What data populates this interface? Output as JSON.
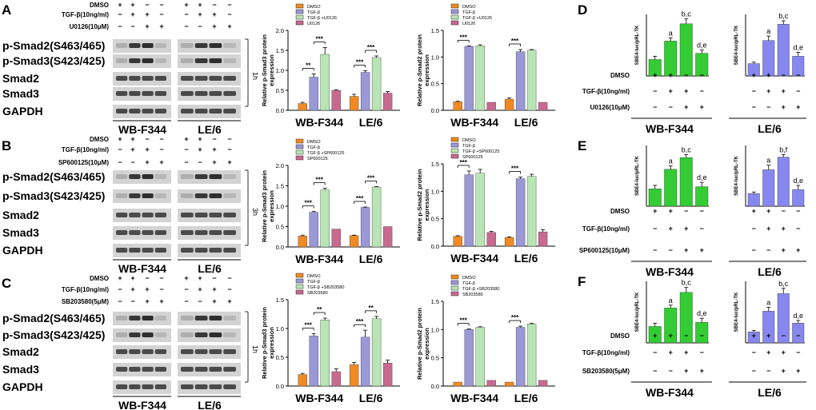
{
  "colors": {
    "dmso": "#f08a24",
    "tgf": "#9b98d6",
    "tgf_inhib": "#b9e4b5",
    "inhib": "#c86a90",
    "green_bar": "#33cc33",
    "purple_bar": "#8787f0",
    "blot_bg": "#d3d3d3",
    "blot_band": "#1c1c1c"
  },
  "panels": [
    {
      "letter": "A",
      "treatments": [
        {
          "label": "DMSO",
          "marks": [
            "+",
            "+",
            "−",
            "−",
            "+",
            "+",
            "−",
            "−"
          ]
        },
        {
          "label": "TGF-β(10ng/ml)",
          "marks": [
            "−",
            "+",
            "+",
            "−",
            "−",
            "+",
            "+",
            "−"
          ]
        },
        {
          "label": "U0126(10μM)",
          "marks": [
            "−",
            "−",
            "+",
            "+",
            "−",
            "−",
            "+",
            "+"
          ]
        }
      ],
      "blot_rows": [
        "p-Smad2(S463/465)",
        "p-Smad3(S423/425)",
        "Smad2",
        "Smad3",
        "GAPDH"
      ],
      "time_label": "1h",
      "cell_lines": [
        "WB-F344",
        "LE/6"
      ]
    },
    {
      "letter": "B",
      "treatments": [
        {
          "label": "DMSO",
          "marks": [
            "+",
            "+",
            "−",
            "−",
            "+",
            "+",
            "−",
            "−"
          ]
        },
        {
          "label": "TGF-β(10ng/ml)",
          "marks": [
            "−",
            "+",
            "+",
            "−",
            "−",
            "+",
            "+",
            "−"
          ]
        },
        {
          "label": "SP600125(10μM)",
          "marks": [
            "−",
            "−",
            "+",
            "+",
            "−",
            "−",
            "+",
            "+"
          ]
        }
      ],
      "blot_rows": [
        "p-Smad2(S463/465)",
        "p-Smad3(S423/425)",
        "Smad2",
        "Smad3",
        "GAPDH"
      ],
      "time_label": "3h",
      "cell_lines": [
        "WB-F344",
        "LE/6"
      ]
    },
    {
      "letter": "C",
      "treatments": [
        {
          "label": "DMSO",
          "marks": [
            "+",
            "+",
            "−",
            "−",
            "+",
            "+",
            "−",
            "−"
          ]
        },
        {
          "label": "TGF-β(10ng/ml)",
          "marks": [
            "−",
            "+",
            "+",
            "−",
            "−",
            "+",
            "+",
            "−"
          ]
        },
        {
          "label": "SB203580(5μM)",
          "marks": [
            "−",
            "−",
            "+",
            "+",
            "−",
            "−",
            "+",
            "+"
          ]
        }
      ],
      "blot_rows": [
        "p-Smad2(S463/465)",
        "p-Smad3(S423/425)",
        "Smad2",
        "Smad3",
        "GAPDH"
      ],
      "time_label": "1h",
      "cell_lines": [
        "WB-F344",
        "LE/6"
      ]
    }
  ],
  "reporter_panels": [
    {
      "letter": "D",
      "ylabel": "SBE4-luc/pRL-TK",
      "treatments": [
        {
          "label": "DMSO",
          "marks": [
            "+",
            "+",
            "−",
            "−"
          ]
        },
        {
          "label": "TGF-β(10ng/ml)",
          "marks": [
            "−",
            "+",
            "+",
            "−"
          ]
        },
        {
          "label": "U0126(10μM)",
          "marks": [
            "−",
            "−",
            "+",
            "+"
          ]
        }
      ],
      "cell_lines": [
        "WB-F344",
        "LE/6"
      ]
    },
    {
      "letter": "E",
      "ylabel": "SBE4-luc/pRL-TK",
      "treatments": [
        {
          "label": "DMSO",
          "marks": [
            "+",
            "+",
            "−",
            "−"
          ]
        },
        {
          "label": "TGF-β(10ng/ml)",
          "marks": [
            "−",
            "+",
            "+",
            "−"
          ]
        },
        {
          "label": "SP600125(10μM)",
          "marks": [
            "−",
            "−",
            "+",
            "+"
          ]
        }
      ],
      "cell_lines": [
        "WB-F344",
        "LE/6"
      ]
    },
    {
      "letter": "F",
      "ylabel": "SBE4-luc/pRL-TK",
      "treatments": [
        {
          "label": "DMSO",
          "marks": [
            "+",
            "+",
            "−",
            "−"
          ]
        },
        {
          "label": "TGF-β(10ng/ml)",
          "marks": [
            "−",
            "+",
            "+",
            "−"
          ]
        },
        {
          "label": "SB203580(5μM)",
          "marks": [
            "−",
            "−",
            "+",
            "+"
          ]
        }
      ],
      "cell_lines": [
        "WB-F344",
        "LE/6"
      ]
    }
  ],
  "chart_data": [
    {
      "id": "A-smad3",
      "type": "bar",
      "ylabel": "Relative p-Smad3 protein expression",
      "ylim": [
        0,
        2.0
      ],
      "yticks": [
        0.0,
        0.5,
        1.0,
        1.5,
        2.0
      ],
      "categories": [
        "WB-F344",
        "LE/6"
      ],
      "legend": [
        "DMSO",
        "TGF-β",
        "TGF-β +U0126",
        "U0126"
      ],
      "series": [
        {
          "name": "DMSO",
          "values": [
            0.17,
            0.35
          ],
          "errors": [
            0.03,
            0.05
          ]
        },
        {
          "name": "TGF-β",
          "values": [
            0.83,
            0.95
          ],
          "errors": [
            0.08,
            0.04
          ]
        },
        {
          "name": "TGF-β +U0126",
          "values": [
            1.4,
            1.32
          ],
          "errors": [
            0.17,
            0.04
          ]
        },
        {
          "name": "U0126",
          "values": [
            0.5,
            0.43
          ],
          "errors": [
            0.01,
            0.04
          ]
        }
      ],
      "annotations": [
        {
          "group": 0,
          "from": 0,
          "to": 1,
          "text": "**"
        },
        {
          "group": 0,
          "from": 1,
          "to": 2,
          "text": "***"
        },
        {
          "group": 1,
          "from": 0,
          "to": 1,
          "text": "***"
        },
        {
          "group": 1,
          "from": 1,
          "to": 2,
          "text": "***"
        }
      ]
    },
    {
      "id": "A-smad2",
      "type": "bar",
      "ylabel": "Relative p-Smad2 protein expression",
      "ylim": [
        0,
        1.5
      ],
      "yticks": [
        0.0,
        0.5,
        1.0,
        1.5
      ],
      "categories": [
        "WB-F344",
        "LE/6"
      ],
      "legend": [
        "DMSO",
        "TGF-β",
        "TGF-β +U0126",
        "U0126"
      ],
      "series": [
        {
          "name": "DMSO",
          "values": [
            0.16,
            0.21
          ],
          "errors": [
            0.01,
            0.02
          ]
        },
        {
          "name": "TGF-β",
          "values": [
            1.2,
            1.1
          ],
          "errors": [
            0.01,
            0.04
          ]
        },
        {
          "name": "TGF-β +U0126",
          "values": [
            1.21,
            1.13
          ],
          "errors": [
            0.02,
            0.01
          ]
        },
        {
          "name": "U0126",
          "values": [
            0.15,
            0.15
          ],
          "errors": [
            0.0,
            0.0
          ]
        }
      ],
      "annotations": [
        {
          "group": 0,
          "from": 0,
          "to": 1,
          "text": "***"
        },
        {
          "group": 1,
          "from": 0,
          "to": 1,
          "text": "***"
        }
      ]
    },
    {
      "id": "B-smad3",
      "type": "bar",
      "ylabel": "Relative p-Smad3 protein expression",
      "ylim": [
        0,
        2.0
      ],
      "yticks": [
        0.0,
        0.5,
        1.0,
        1.5,
        2.0
      ],
      "categories": [
        "WB-F344",
        "LE/6"
      ],
      "legend": [
        "DMSO",
        "TGF-β",
        "TGF-β +SP600125",
        "SP600125"
      ],
      "series": [
        {
          "name": "DMSO",
          "values": [
            0.27,
            0.28
          ],
          "errors": [
            0.02,
            0.01
          ]
        },
        {
          "name": "TGF-β",
          "values": [
            0.85,
            0.97
          ],
          "errors": [
            0.02,
            0.01
          ]
        },
        {
          "name": "TGF-β +SP600125",
          "values": [
            1.4,
            1.47
          ],
          "errors": [
            0.04,
            0.01
          ]
        },
        {
          "name": "SP600125",
          "values": [
            0.44,
            0.5
          ],
          "errors": [
            0.0,
            0.0
          ]
        }
      ],
      "annotations": [
        {
          "group": 0,
          "from": 0,
          "to": 1,
          "text": "***"
        },
        {
          "group": 0,
          "from": 1,
          "to": 2,
          "text": "***"
        },
        {
          "group": 1,
          "from": 0,
          "to": 1,
          "text": "***"
        },
        {
          "group": 1,
          "from": 1,
          "to": 2,
          "text": "***"
        }
      ]
    },
    {
      "id": "B-smad2",
      "type": "bar",
      "ylabel": "Relative p-Smad2 protein expression",
      "ylim": [
        0,
        1.5
      ],
      "yticks": [
        0.0,
        0.5,
        1.0,
        1.5
      ],
      "categories": [
        "WB-F344",
        "LE/6"
      ],
      "legend": [
        "DMSO",
        "TGF-β",
        "TGF-β +SP600125",
        "SP600125"
      ],
      "series": [
        {
          "name": "DMSO",
          "values": [
            0.18,
            0.16
          ],
          "errors": [
            0.01,
            0.01
          ]
        },
        {
          "name": "TGF-β",
          "values": [
            1.3,
            1.23
          ],
          "errors": [
            0.07,
            0.03
          ]
        },
        {
          "name": "TGF-β +SP600125",
          "values": [
            1.33,
            1.27
          ],
          "errors": [
            0.07,
            0.04
          ]
        },
        {
          "name": "SP600125",
          "values": [
            0.25,
            0.26
          ],
          "errors": [
            0.02,
            0.04
          ]
        }
      ],
      "annotations": [
        {
          "group": 0,
          "from": 0,
          "to": 1,
          "text": "***"
        },
        {
          "group": 1,
          "from": 0,
          "to": 1,
          "text": "***"
        }
      ]
    },
    {
      "id": "C-smad3",
      "type": "bar",
      "ylabel": "Relative p-Smad3 protein expression",
      "ylim": [
        0,
        1.5
      ],
      "yticks": [
        0.0,
        0.5,
        1.0,
        1.5
      ],
      "categories": [
        "WB-F344",
        "LE/6"
      ],
      "legend": [
        "DMSO",
        "TGF-β",
        "TGF-β +SB203580",
        "SB203580"
      ],
      "series": [
        {
          "name": "DMSO",
          "values": [
            0.2,
            0.37
          ],
          "errors": [
            0.02,
            0.04
          ]
        },
        {
          "name": "TGF-β",
          "values": [
            0.87,
            0.85
          ],
          "errors": [
            0.04,
            0.12
          ]
        },
        {
          "name": "TGF-β +SB203580",
          "values": [
            1.15,
            1.17
          ],
          "errors": [
            0.03,
            0.04
          ]
        },
        {
          "name": "SB203580",
          "values": [
            0.25,
            0.4
          ],
          "errors": [
            0.05,
            0.05
          ]
        }
      ],
      "annotations": [
        {
          "group": 0,
          "from": 0,
          "to": 1,
          "text": "***"
        },
        {
          "group": 0,
          "from": 1,
          "to": 2,
          "text": "**"
        },
        {
          "group": 1,
          "from": 0,
          "to": 1,
          "text": "***"
        },
        {
          "group": 1,
          "from": 1,
          "to": 2,
          "text": "**"
        }
      ]
    },
    {
      "id": "C-smad2",
      "type": "bar",
      "ylabel": "Relative p-Smad2 protein expression",
      "ylim": [
        0,
        1.5
      ],
      "yticks": [
        0.0,
        0.5,
        1.0,
        1.5
      ],
      "categories": [
        "WB-F344",
        "LE/6"
      ],
      "legend": [
        "DMSO",
        "TGF-β",
        "TGF-β +SB203580",
        "SB203580"
      ],
      "series": [
        {
          "name": "DMSO",
          "values": [
            0.07,
            0.07
          ],
          "errors": [
            0.0,
            0.0
          ]
        },
        {
          "name": "TGF-β",
          "values": [
            1.0,
            1.04
          ],
          "errors": [
            0.01,
            0.02
          ]
        },
        {
          "name": "TGF-β +SB203580",
          "values": [
            1.04,
            1.1
          ],
          "errors": [
            0.01,
            0.01
          ]
        },
        {
          "name": "SB203580",
          "values": [
            0.1,
            0.1
          ],
          "errors": [
            0.0,
            0.0
          ]
        }
      ],
      "annotations": [
        {
          "group": 0,
          "from": 0,
          "to": 1,
          "text": "***"
        },
        {
          "group": 1,
          "from": 0,
          "to": 1,
          "text": "***"
        }
      ]
    },
    {
      "id": "D-wb",
      "type": "bar",
      "ylabel": "SBE4-luc/pRL-TK",
      "color": "green_bar",
      "values": [
        0.4,
        0.85,
        1.27,
        0.55
      ],
      "errors": [
        0.08,
        0.08,
        0.12,
        0.08
      ],
      "labels": [
        "",
        "a",
        "b,c",
        "d,e"
      ],
      "ylim": [
        0,
        1.5
      ]
    },
    {
      "id": "D-le",
      "type": "bar",
      "ylabel": "SBE4-luc/pRL-TK",
      "color": "purple_bar",
      "values": [
        0.25,
        0.72,
        1.05,
        0.4
      ],
      "errors": [
        0.03,
        0.09,
        0.07,
        0.08
      ],
      "labels": [
        "",
        "a",
        "b,c",
        "d,e"
      ],
      "ylim": [
        0,
        1.25
      ]
    },
    {
      "id": "E-wb",
      "type": "bar",
      "ylabel": "SBE4-luc/pRL-TK",
      "color": "green_bar",
      "values": [
        0.4,
        0.85,
        1.12,
        0.45
      ],
      "errors": [
        0.08,
        0.08,
        0.07,
        0.1
      ],
      "labels": [
        "",
        "a",
        "b,c",
        "d,e"
      ],
      "ylim": [
        0,
        1.4
      ]
    },
    {
      "id": "E-le",
      "type": "bar",
      "ylabel": "SBE4-luc/pRL-TK",
      "color": "purple_bar",
      "values": [
        0.25,
        0.72,
        0.97,
        0.33
      ],
      "errors": [
        0.03,
        0.09,
        0.05,
        0.08
      ],
      "labels": [
        "",
        "a",
        "b,f",
        "d,e"
      ],
      "ylim": [
        0,
        1.2
      ]
    },
    {
      "id": "F-wb",
      "type": "bar",
      "ylabel": "SBE4-luc/pRL-TK",
      "color": "green_bar",
      "values": [
        0.4,
        0.85,
        1.23,
        0.5
      ],
      "errors": [
        0.08,
        0.07,
        0.12,
        0.1
      ],
      "labels": [
        "",
        "a",
        "b,c",
        "d,e"
      ],
      "ylim": [
        0,
        1.5
      ]
    },
    {
      "id": "F-le",
      "type": "bar",
      "ylabel": "SBE4-luc/pRL-TK",
      "color": "purple_bar",
      "values": [
        0.25,
        0.72,
        1.12,
        0.45
      ],
      "errors": [
        0.03,
        0.09,
        0.12,
        0.06
      ],
      "labels": [
        "",
        "a",
        "b,c",
        "d,e"
      ],
      "ylim": [
        0,
        1.4
      ]
    }
  ]
}
